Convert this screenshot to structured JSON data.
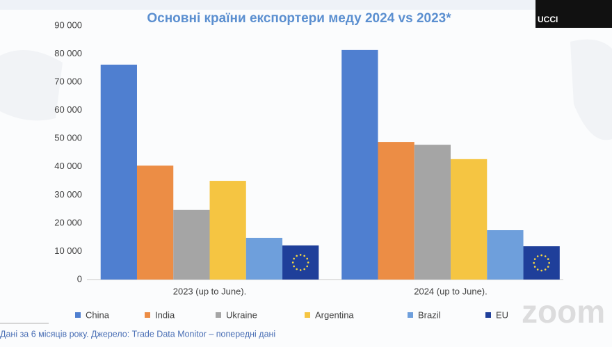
{
  "chart_data": {
    "type": "bar",
    "title": "Основні країни експортери меду 2024 vs 2023*",
    "categories": [
      "2023 (up to June).",
      "2024 (up to June)."
    ],
    "series": [
      {
        "name": "China",
        "color": "#4f7fd0",
        "values": [
          76200,
          81400
        ]
      },
      {
        "name": "India",
        "color": "#ec8d45",
        "values": [
          40400,
          48800
        ]
      },
      {
        "name": "Ukraine",
        "color": "#a5a5a5",
        "values": [
          24700,
          47800
        ]
      },
      {
        "name": "Argentina",
        "color": "#f5c542",
        "values": [
          35000,
          42700
        ]
      },
      {
        "name": "Brazil",
        "color": "#6e9fdc",
        "values": [
          14800,
          17500
        ]
      },
      {
        "name": "EU",
        "color": "#1f3f9a",
        "values": [
          12100,
          11800
        ]
      }
    ],
    "ylim": [
      0,
      90000
    ],
    "yticks": [
      0,
      {
        "value": 10000,
        "label": "10 000"
      },
      {
        "value": 20000,
        "label": "20 000"
      },
      {
        "value": 30000,
        "label": "30 000"
      },
      {
        "value": 40000,
        "label": "40 000"
      },
      {
        "value": 50000,
        "label": "50 000"
      },
      {
        "value": 60000,
        "label": "60 000"
      },
      {
        "value": 70000,
        "label": "70 000"
      },
      {
        "value": 80000,
        "label": "80 000"
      },
      {
        "value": 90000,
        "label": "90 000"
      }
    ],
    "grid": false,
    "legend": "bottom"
  },
  "footnote": "Дані за 6 місяців року. Джерело: Trade Data Monitor – попередні дані",
  "video_label": "UCCI",
  "watermark": "zoom"
}
